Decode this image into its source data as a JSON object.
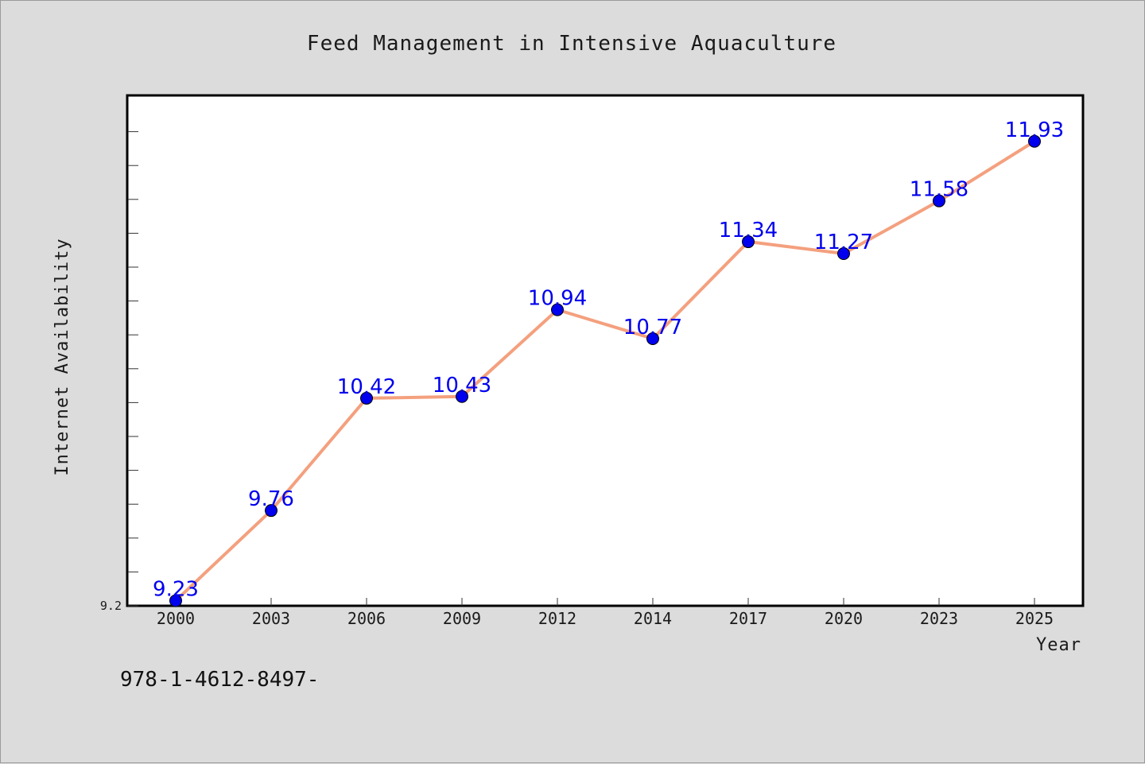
{
  "colors": {
    "background": "#dcdcdc",
    "plot_background": "#ffffff",
    "line": "#f4a07e",
    "marker": "#0000ee",
    "label": "#0000ee"
  },
  "footer_text": "978-1-4612-8497-",
  "chart_data": {
    "type": "line",
    "title": "Feed Management in Intensive Aquaculture",
    "xlabel": "Year",
    "ylabel": "Internet Availability",
    "categories": [
      "2000",
      "2003",
      "2006",
      "2009",
      "2012",
      "2014",
      "2017",
      "2020",
      "2023",
      "2025"
    ],
    "series": [
      {
        "values": [
          9.23,
          9.76,
          10.42,
          10.43,
          10.94,
          10.77,
          11.34,
          11.27,
          11.58,
          11.93
        ]
      }
    ],
    "data_labels": [
      "9.23",
      "9.76",
      "10.42",
      "10.43",
      "10.94",
      "10.77",
      "11.34",
      "11.27",
      "11.58",
      "11.93"
    ],
    "ylim": [
      9.2,
      12.2
    ],
    "y_tick_labels": [
      "9.2"
    ],
    "grid": false,
    "legend": "none"
  }
}
